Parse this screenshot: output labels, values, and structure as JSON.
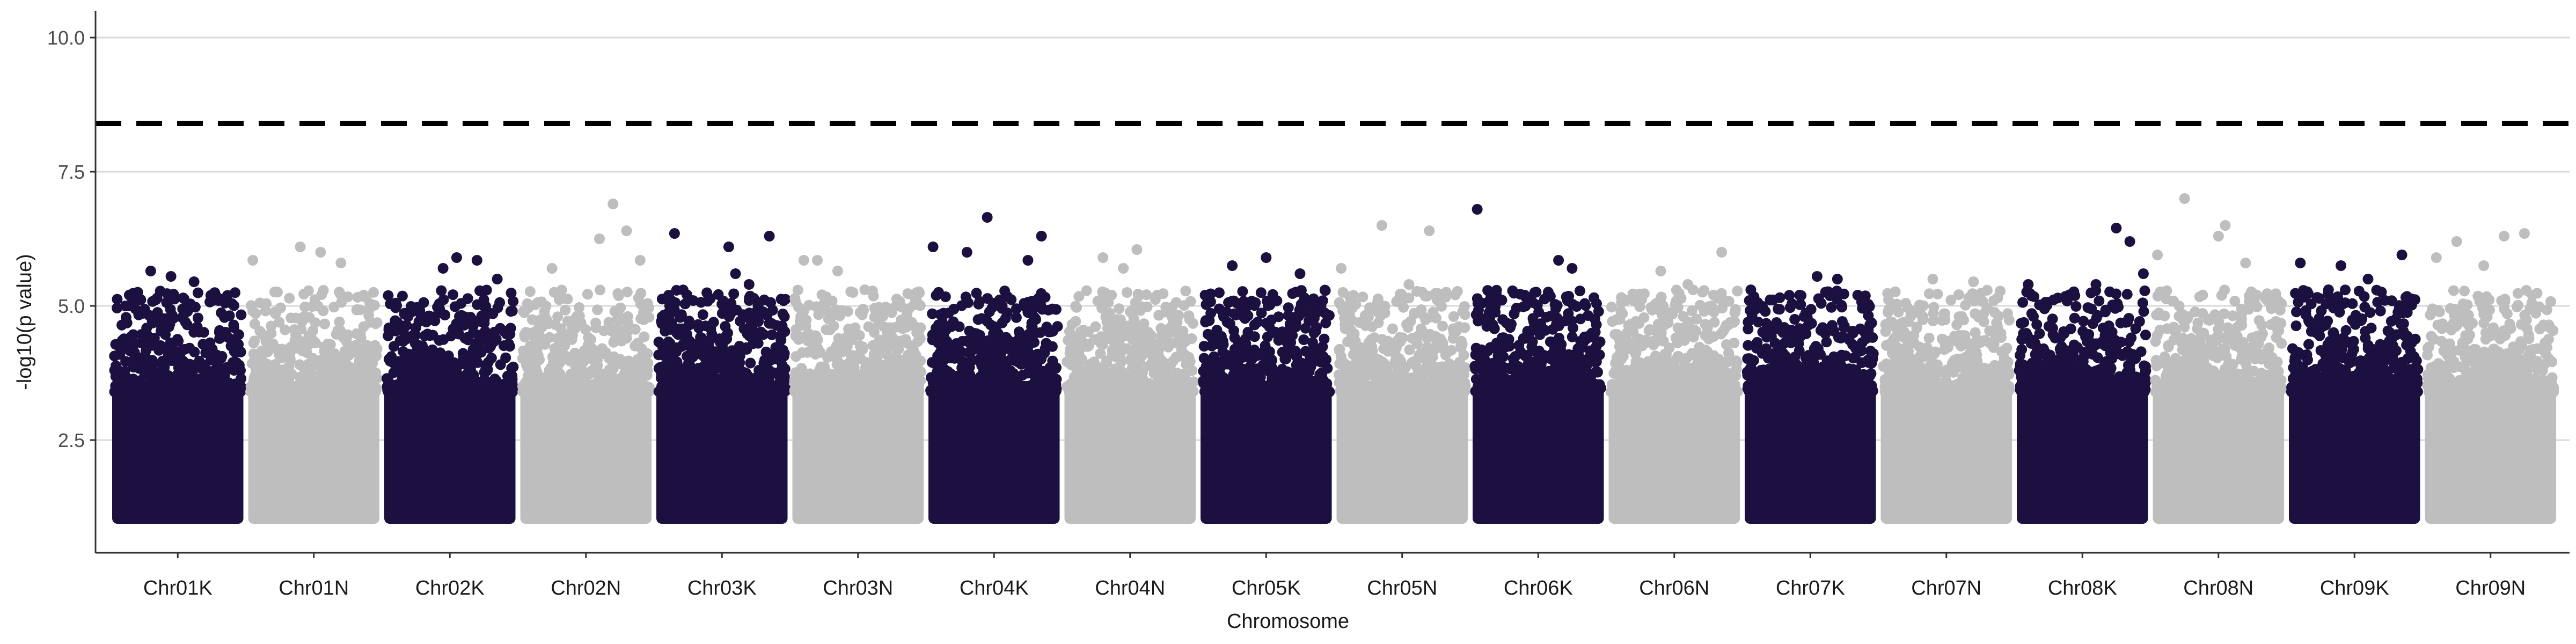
{
  "chart_data": {
    "type": "scatter",
    "title": "",
    "xlabel": "Chromosome",
    "ylabel": "-log10(p value)",
    "ylim": [
      0.4,
      10.5
    ],
    "yticks": [
      2.5,
      5.0,
      7.5,
      10.0
    ],
    "ytick_labels": [
      "2.5",
      "5.0",
      "7.5",
      "10.0"
    ],
    "grid": "horizontal-major",
    "legend": "none",
    "threshold": 8.4,
    "threshold_style": "dashed",
    "min_plotted_value": 1.0,
    "colors": {
      "odd": "#1c1040",
      "even": "#bebebe",
      "threshold": "#000000",
      "grid": "#d9d9d9"
    },
    "categories": [
      "Chr01K",
      "Chr01N",
      "Chr02K",
      "Chr02N",
      "Chr03K",
      "Chr03N",
      "Chr04K",
      "Chr04N",
      "Chr05K",
      "Chr05N",
      "Chr06K",
      "Chr06N",
      "Chr07K",
      "Chr07N",
      "Chr08K",
      "Chr08N",
      "Chr09K",
      "Chr09N"
    ],
    "series": [
      {
        "name": "Chr01K",
        "color": "dark",
        "top_points": [
          [
            0.3,
            5.65
          ],
          [
            0.45,
            5.55
          ],
          [
            0.62,
            5.45
          ],
          [
            0.15,
            5.0
          ],
          [
            0.8,
            5.1
          ]
        ]
      },
      {
        "name": "Chr01N",
        "color": "light",
        "top_points": [
          [
            0.05,
            5.85
          ],
          [
            0.4,
            6.1
          ],
          [
            0.55,
            6.0
          ],
          [
            0.7,
            5.8
          ]
        ]
      },
      {
        "name": "Chr02K",
        "color": "dark",
        "top_points": [
          [
            0.55,
            5.9
          ],
          [
            0.7,
            5.85
          ],
          [
            0.45,
            5.7
          ],
          [
            0.85,
            5.5
          ]
        ]
      },
      {
        "name": "Chr02N",
        "color": "light",
        "top_points": [
          [
            0.7,
            6.9
          ],
          [
            0.6,
            6.25
          ],
          [
            0.8,
            6.4
          ],
          [
            0.9,
            5.85
          ],
          [
            0.25,
            5.7
          ]
        ]
      },
      {
        "name": "Chr03K",
        "color": "dark",
        "top_points": [
          [
            0.15,
            6.35
          ],
          [
            0.85,
            6.3
          ],
          [
            0.55,
            6.1
          ],
          [
            0.6,
            5.6
          ],
          [
            0.7,
            5.4
          ]
        ]
      },
      {
        "name": "Chr03N",
        "color": "light",
        "top_points": [
          [
            0.1,
            5.85
          ],
          [
            0.2,
            5.85
          ],
          [
            0.35,
            5.65
          ],
          [
            0.55,
            5.3
          ]
        ]
      },
      {
        "name": "Chr04K",
        "color": "dark",
        "top_points": [
          [
            0.45,
            6.65
          ],
          [
            0.05,
            6.1
          ],
          [
            0.3,
            6.0
          ],
          [
            0.85,
            6.3
          ],
          [
            0.75,
            5.85
          ]
        ]
      },
      {
        "name": "Chr04N",
        "color": "light",
        "top_points": [
          [
            0.55,
            6.05
          ],
          [
            0.3,
            5.9
          ],
          [
            0.45,
            5.7
          ],
          [
            0.7,
            5.2
          ]
        ]
      },
      {
        "name": "Chr05K",
        "color": "dark",
        "top_points": [
          [
            0.25,
            5.75
          ],
          [
            0.5,
            5.9
          ],
          [
            0.75,
            5.6
          ],
          [
            0.05,
            5.2
          ]
        ]
      },
      {
        "name": "Chr05N",
        "color": "light",
        "top_points": [
          [
            0.35,
            6.5
          ],
          [
            0.7,
            6.4
          ],
          [
            0.05,
            5.7
          ],
          [
            0.55,
            5.4
          ]
        ]
      },
      {
        "name": "Chr06K",
        "color": "dark",
        "top_points": [
          [
            0.05,
            6.8
          ],
          [
            0.65,
            5.85
          ],
          [
            0.75,
            5.7
          ],
          [
            0.4,
            5.2
          ],
          [
            0.15,
            5.2
          ]
        ]
      },
      {
        "name": "Chr06N",
        "color": "light",
        "top_points": [
          [
            0.85,
            6.0
          ],
          [
            0.4,
            5.65
          ],
          [
            0.6,
            5.4
          ],
          [
            0.2,
            5.1
          ]
        ]
      },
      {
        "name": "Chr07K",
        "color": "dark",
        "top_points": [
          [
            0.55,
            5.55
          ],
          [
            0.7,
            5.5
          ],
          [
            0.05,
            5.1
          ],
          [
            0.85,
            5.2
          ]
        ]
      },
      {
        "name": "Chr07N",
        "color": "light",
        "top_points": [
          [
            0.4,
            5.5
          ],
          [
            0.7,
            5.45
          ],
          [
            0.2,
            5.05
          ],
          [
            0.85,
            5.1
          ]
        ]
      },
      {
        "name": "Chr08K",
        "color": "dark",
        "top_points": [
          [
            0.75,
            6.45
          ],
          [
            0.85,
            6.2
          ],
          [
            0.6,
            5.4
          ],
          [
            0.1,
            5.4
          ],
          [
            0.95,
            5.6
          ]
        ]
      },
      {
        "name": "Chr08N",
        "color": "light",
        "top_points": [
          [
            0.25,
            7.0
          ],
          [
            0.55,
            6.5
          ],
          [
            0.5,
            6.3
          ],
          [
            0.05,
            5.95
          ],
          [
            0.7,
            5.8
          ]
        ]
      },
      {
        "name": "Chr09K",
        "color": "dark",
        "top_points": [
          [
            0.4,
            5.75
          ],
          [
            0.85,
            5.95
          ],
          [
            0.1,
            5.8
          ],
          [
            0.6,
            5.5
          ]
        ]
      },
      {
        "name": "Chr09N",
        "color": "light",
        "top_points": [
          [
            0.75,
            6.35
          ],
          [
            0.6,
            6.3
          ],
          [
            0.25,
            6.2
          ],
          [
            0.1,
            5.9
          ],
          [
            0.45,
            5.75
          ]
        ]
      }
    ]
  }
}
